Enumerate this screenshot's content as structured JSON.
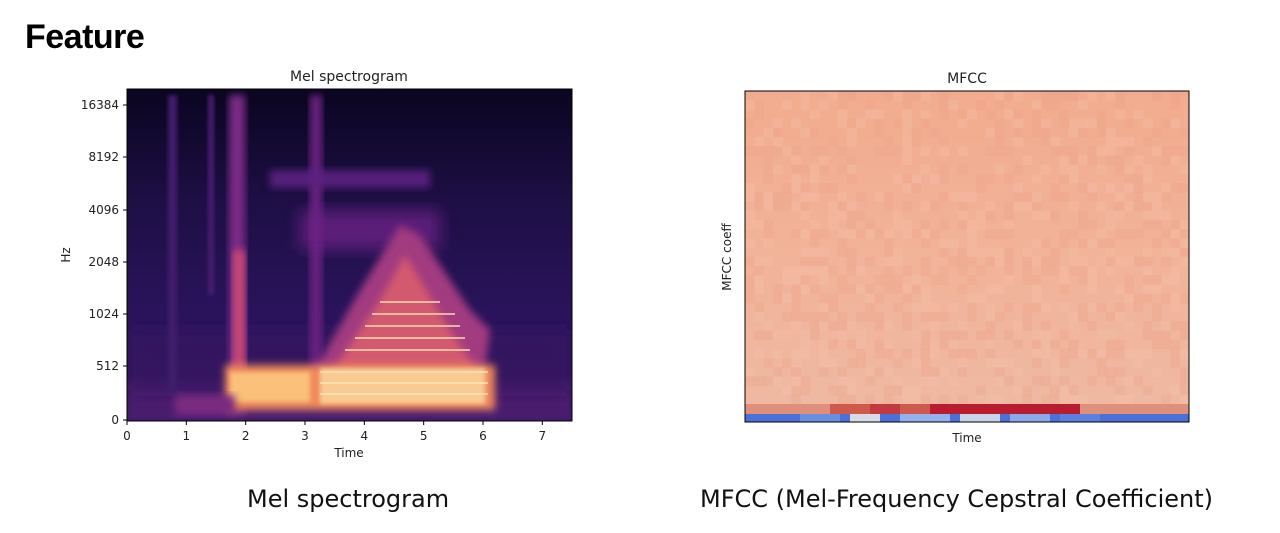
{
  "slide": {
    "title": "Feature",
    "captions": [
      "Mel spectrogram",
      "MFCC (Mel-Frequency Cepstral Coefficient)"
    ]
  },
  "chart_data": [
    {
      "type": "heatmap",
      "title": "Mel spectrogram",
      "xlabel": "Time",
      "ylabel": "Hz",
      "xlim": [
        0,
        7.5
      ],
      "x_ticks": [
        0,
        1,
        2,
        3,
        4,
        5,
        6,
        7
      ],
      "y_ticks": [
        "0",
        "512",
        "1024",
        "2048",
        "4096",
        "8192",
        "16384"
      ],
      "y_scale": "mel",
      "colormap": "magma",
      "grid": false
    },
    {
      "type": "heatmap",
      "title": "MFCC",
      "xlabel": "Time",
      "ylabel": "MFCC coeff",
      "x_ticks": [],
      "y_ticks": [],
      "colormap": "coolwarm",
      "grid": false
    }
  ]
}
